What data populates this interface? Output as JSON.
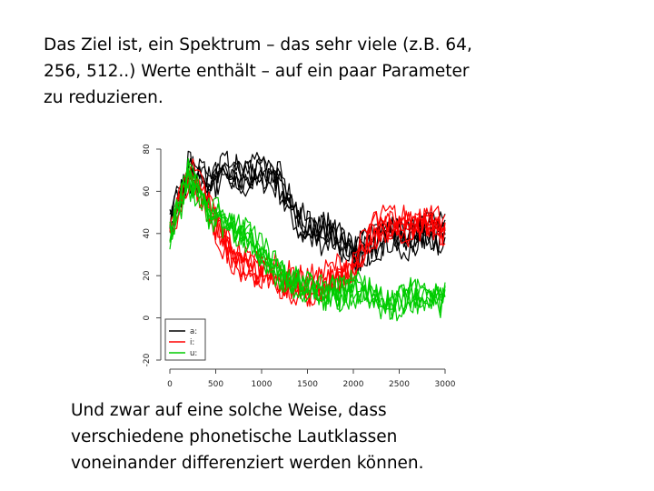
{
  "slide": {
    "intro_text": "Das Ziel ist, ein Spektrum – das sehr viele (z.B. 64,\n256, 512..) Werte enthält – auf ein paar Parameter\nzu reduzieren.",
    "outro_text": "Und zwar auf eine solche Weise, dass\nverschiedene phonetische Lautklassen\nvoneinander differenziert werden können."
  },
  "chart_data": {
    "type": "line",
    "title": "",
    "xlabel": "",
    "ylabel": "",
    "xlim": [
      0,
      3000
    ],
    "ylim": [
      -20,
      80
    ],
    "x_ticks": [
      0,
      500,
      1000,
      1500,
      2000,
      2500,
      3000
    ],
    "y_ticks": [
      -20,
      0,
      20,
      40,
      60,
      80
    ],
    "legend": {
      "placement": "bottom-left"
    },
    "x": [
      0,
      200,
      400,
      600,
      800,
      1000,
      1200,
      1400,
      1600,
      1800,
      2000,
      2200,
      2400,
      2600,
      2800,
      3000
    ],
    "series": [
      {
        "name": "a:",
        "color": "#000000",
        "repeats": 6,
        "values": [
          42,
          70,
          64,
          70,
          66,
          70,
          64,
          46,
          40,
          40,
          30,
          36,
          40,
          38,
          42,
          40
        ]
      },
      {
        "name": "i:",
        "color": "#ff0000",
        "repeats": 6,
        "values": [
          40,
          70,
          56,
          36,
          26,
          24,
          20,
          16,
          16,
          22,
          24,
          42,
          46,
          44,
          48,
          44
        ]
      },
      {
        "name": "u:",
        "color": "#00cc00",
        "repeats": 6,
        "values": [
          38,
          66,
          50,
          46,
          40,
          30,
          20,
          16,
          12,
          10,
          14,
          10,
          6,
          10,
          10,
          8
        ]
      }
    ]
  }
}
